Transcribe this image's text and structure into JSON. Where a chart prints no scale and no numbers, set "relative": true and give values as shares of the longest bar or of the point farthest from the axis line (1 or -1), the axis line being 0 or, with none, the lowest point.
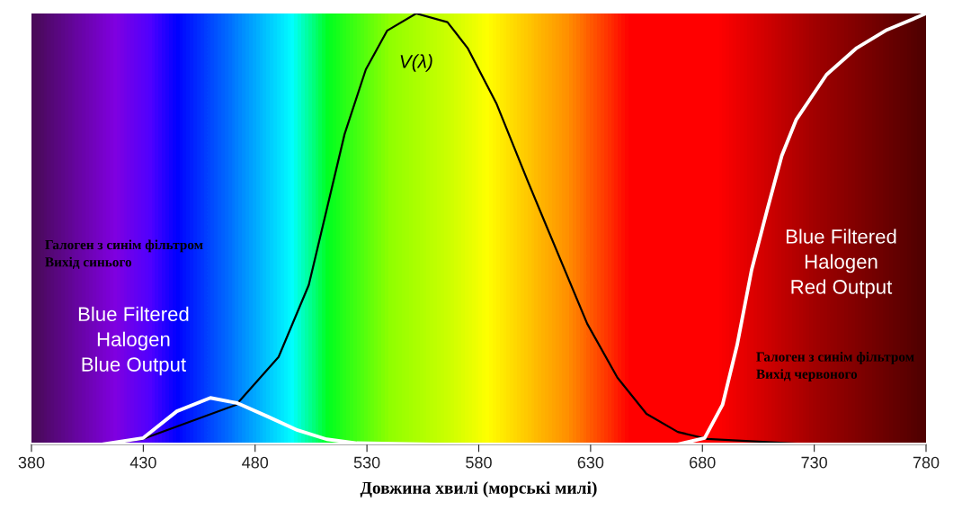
{
  "chart_data": {
    "type": "line",
    "relative": true,
    "xlabel": "Довжина хвилі (морські милі)",
    "xlim": [
      380,
      780
    ],
    "xticks": [
      380,
      430,
      480,
      530,
      580,
      630,
      680,
      730,
      780
    ],
    "tick_labels": "x",
    "grid": false,
    "legend": false,
    "marker": "none",
    "line_style": "solid",
    "series": [
      {
        "color": "#000000",
        "x": [
          380,
          410,
          430,
          471.5,
          490.5,
          504,
          512,
          520,
          529.5,
          539,
          552,
          566,
          575,
          588,
          602,
          610,
          628.5,
          642,
          655,
          669,
          682,
          730,
          780
        ],
        "values": [
          0,
          0,
          0.013,
          0.092,
          0.203,
          0.37,
          0.545,
          0.72,
          0.87,
          0.96,
          1.0,
          0.98,
          0.92,
          0.79,
          0.61,
          0.51,
          0.28,
          0.155,
          0.071,
          0.029,
          0.013,
          0,
          0
        ]
      },
      {
        "color": "#ffffff",
        "x": [
          380,
          411.5,
          430,
          445,
          460,
          472,
          485.5,
          499,
          512,
          525.5,
          560,
          780
        ],
        "values": [
          0,
          0,
          0.015,
          0.077,
          0.108,
          0.096,
          0.065,
          0.033,
          0.012,
          0.003,
          0,
          0
        ]
      },
      {
        "color": "#ffffff",
        "x": [
          380,
          669,
          681,
          689,
          695.5,
          702,
          709,
          715.5,
          722,
          735.5,
          749,
          762.5,
          780
        ],
        "values": [
          0,
          0,
          0.015,
          0.092,
          0.23,
          0.405,
          0.545,
          0.67,
          0.754,
          0.858,
          0.92,
          0.962,
          1.0
        ]
      }
    ],
    "annotations": [
      "V(λ)",
      "Галоген з синім фільтром\nВихід синього",
      "Blue Filtered\nHalogen\nBlue Output",
      "Blue Filtered\nHalogen\nRed Output",
      "Галоген з синім фільтром\nВихід червоного"
    ]
  }
}
